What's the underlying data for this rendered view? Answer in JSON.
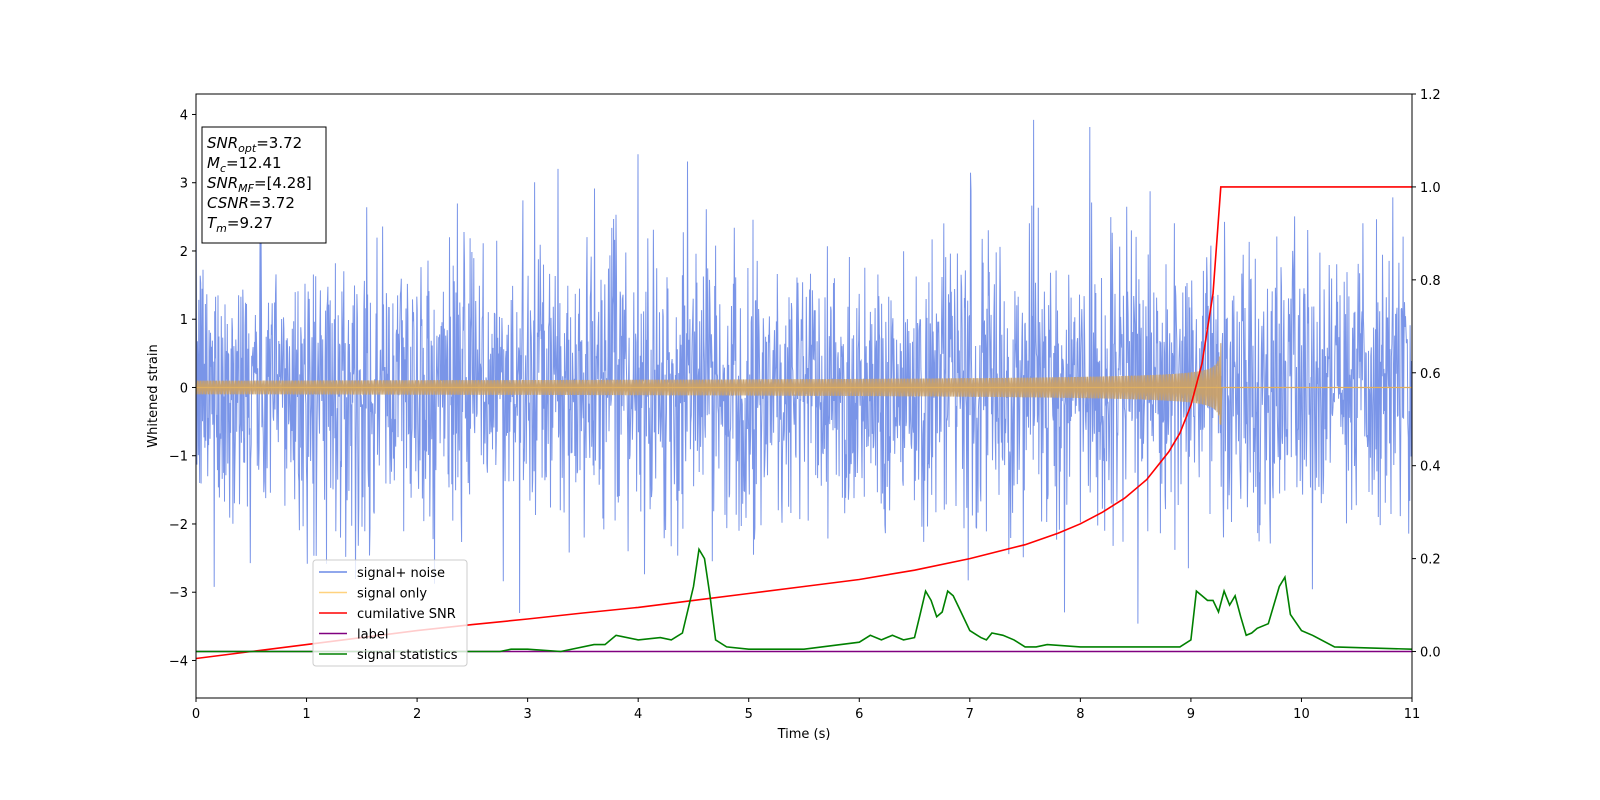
{
  "chart_data": {
    "type": "line",
    "xlabel": "Time (s)",
    "ylabel": "Whitened strain",
    "xlim": [
      0,
      11
    ],
    "ylim": [
      -4.55,
      4.3
    ],
    "y2lim": [
      -0.1,
      1.2
    ],
    "xticks": [
      "0",
      "1",
      "2",
      "3",
      "4",
      "5",
      "6",
      "7",
      "8",
      "9",
      "10",
      "11"
    ],
    "yticks": [
      "4",
      "3",
      "2",
      "1",
      "0",
      "−1",
      "−2",
      "−3",
      "−4"
    ],
    "y2ticks": [
      "1.2",
      "1.0",
      "0.8",
      "0.6",
      "0.4",
      "0.2",
      "0.0"
    ],
    "grid": false,
    "legend_position": "lower-left",
    "annotation": {
      "lines": [
        {
          "name": "SNR",
          "sub": "opt",
          "value": "=3.72"
        },
        {
          "name": "M",
          "sub": "c",
          "value": "=12.41"
        },
        {
          "name": "SNR",
          "sub": "MF",
          "value": "=[4.28]"
        },
        {
          "name": "CSNR",
          "sub": "",
          "value": "=3.72"
        },
        {
          "name": "T",
          "sub": "m",
          "value": "=9.27"
        }
      ]
    },
    "series": [
      {
        "name": "signal+ noise",
        "axis": "left",
        "color": "#6b8ae6",
        "noise_std": 1.0,
        "x_range": [
          0,
          11
        ]
      },
      {
        "name": "signal only",
        "axis": "left",
        "color": "#f5b942",
        "chirp_end": 9.27,
        "peak_amplitude": 0.65
      },
      {
        "name": "cumilative SNR",
        "axis": "right",
        "color": "#ff0000",
        "x": [
          0,
          0.5,
          1,
          1.5,
          2,
          2.5,
          3,
          3.5,
          4,
          4.5,
          5,
          5.5,
          6,
          6.5,
          7,
          7.5,
          7.8,
          8,
          8.2,
          8.4,
          8.6,
          8.8,
          8.9,
          9.0,
          9.1,
          9.2,
          9.27,
          11
        ],
        "y": [
          -0.015,
          0.0,
          0.015,
          0.03,
          0.045,
          0.058,
          0.07,
          0.083,
          0.095,
          0.11,
          0.125,
          0.14,
          0.155,
          0.175,
          0.2,
          0.23,
          0.255,
          0.275,
          0.3,
          0.33,
          0.37,
          0.43,
          0.47,
          0.53,
          0.62,
          0.77,
          1.0,
          1.0
        ]
      },
      {
        "name": "label",
        "axis": "right",
        "color": "#800080",
        "x": [
          0,
          11
        ],
        "y": [
          0,
          0
        ]
      },
      {
        "name": "signal statistics",
        "axis": "right",
        "color": "#008000",
        "x": [
          0,
          0.5,
          1,
          1.5,
          2,
          2.5,
          2.75,
          2.85,
          3,
          3.3,
          3.6,
          3.7,
          3.8,
          4,
          4.2,
          4.3,
          4.4,
          4.5,
          4.55,
          4.6,
          4.65,
          4.7,
          4.8,
          5,
          5.3,
          5.5,
          6,
          6.1,
          6.2,
          6.3,
          6.4,
          6.5,
          6.55,
          6.6,
          6.65,
          6.7,
          6.75,
          6.8,
          6.85,
          6.9,
          7,
          7.1,
          7.15,
          7.2,
          7.3,
          7.4,
          7.5,
          7.6,
          7.7,
          8,
          8.5,
          8.9,
          9.0,
          9.05,
          9.1,
          9.15,
          9.2,
          9.25,
          9.3,
          9.35,
          9.4,
          9.45,
          9.5,
          9.55,
          9.6,
          9.7,
          9.8,
          9.85,
          9.9,
          10,
          10.1,
          10.3,
          11
        ],
        "y": [
          0,
          0,
          0,
          0,
          0,
          0,
          0,
          0.005,
          0.005,
          0,
          0.015,
          0.015,
          0.035,
          0.025,
          0.03,
          0.025,
          0.04,
          0.14,
          0.22,
          0.2,
          0.12,
          0.025,
          0.01,
          0.005,
          0.005,
          0.005,
          0.02,
          0.035,
          0.025,
          0.035,
          0.025,
          0.03,
          0.08,
          0.13,
          0.11,
          0.075,
          0.085,
          0.13,
          0.12,
          0.095,
          0.045,
          0.03,
          0.025,
          0.04,
          0.035,
          0.025,
          0.01,
          0.01,
          0.015,
          0.01,
          0.01,
          0.01,
          0.025,
          0.13,
          0.12,
          0.11,
          0.11,
          0.085,
          0.13,
          0.1,
          0.12,
          0.075,
          0.035,
          0.04,
          0.05,
          0.06,
          0.14,
          0.16,
          0.08,
          0.045,
          0.035,
          0.01,
          0.005
        ]
      }
    ]
  }
}
